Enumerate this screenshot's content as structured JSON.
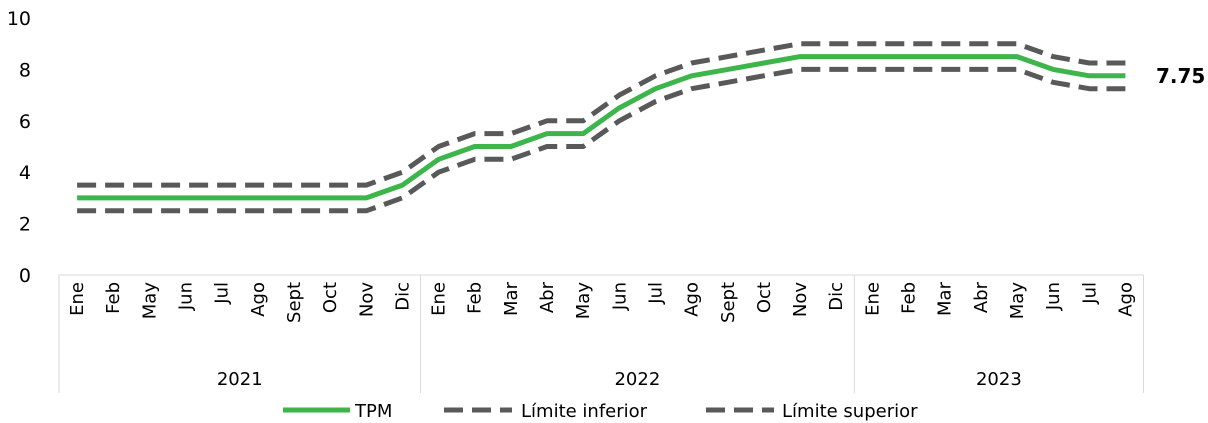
{
  "chart_data": {
    "type": "line",
    "ylim": [
      0,
      10
    ],
    "yticks": [
      0,
      2,
      4,
      6,
      8,
      10
    ],
    "categories": [
      "Ene",
      "Feb",
      "May",
      "Jun",
      "Jul",
      "Ago",
      "Sept",
      "Oct",
      "Nov",
      "Dic",
      "Ene",
      "Feb",
      "Mar",
      "Abr",
      "May",
      "Jun",
      "Jul",
      "Ago",
      "Sept",
      "Oct",
      "Nov",
      "Dic",
      "Ene",
      "Feb",
      "Mar",
      "Abr",
      "May",
      "Jun",
      "Jul",
      "Ago"
    ],
    "groups": [
      {
        "label": "2021",
        "count": 10
      },
      {
        "label": "2022",
        "count": 12
      },
      {
        "label": "2023",
        "count": 8
      }
    ],
    "series": [
      {
        "name": "TPM",
        "style": "solid",
        "color": "#3DB54A",
        "values": [
          3,
          3,
          3,
          3,
          3,
          3,
          3,
          3,
          3,
          3.5,
          4.5,
          5,
          5,
          5.5,
          5.5,
          6.5,
          7.25,
          7.75,
          8,
          8.25,
          8.5,
          8.5,
          8.5,
          8.5,
          8.5,
          8.5,
          8.5,
          8,
          7.75,
          7.75
        ]
      },
      {
        "name": "Límite inferior",
        "style": "dashed",
        "color": "#595959",
        "values": [
          2.5,
          2.5,
          2.5,
          2.5,
          2.5,
          2.5,
          2.5,
          2.5,
          2.5,
          3,
          4,
          4.5,
          4.5,
          5,
          5,
          6,
          6.75,
          7.25,
          7.5,
          7.75,
          8,
          8,
          8,
          8,
          8,
          8,
          8,
          7.5,
          7.25,
          7.25
        ]
      },
      {
        "name": "Límite superior",
        "style": "dashed",
        "color": "#595959",
        "values": [
          3.5,
          3.5,
          3.5,
          3.5,
          3.5,
          3.5,
          3.5,
          3.5,
          3.5,
          4,
          5,
          5.5,
          5.5,
          6,
          6,
          7,
          7.75,
          8.25,
          8.5,
          8.75,
          9,
          9,
          9,
          9,
          9,
          9,
          9,
          8.5,
          8.25,
          8.25
        ]
      }
    ],
    "end_label": "7.75",
    "legend_position": "bottom",
    "grid": false
  }
}
